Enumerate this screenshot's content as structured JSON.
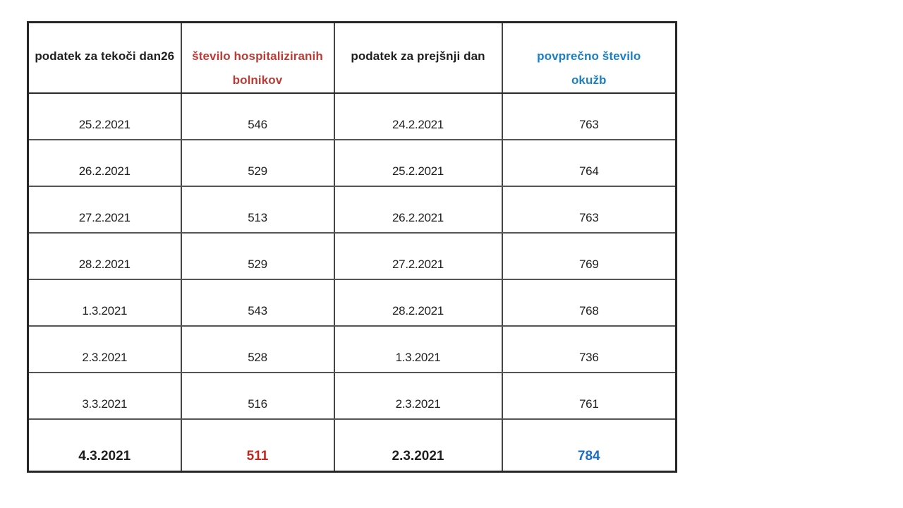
{
  "colors": {
    "header_red": "#be3a34",
    "header_blue": "#1b7fc4",
    "data_red": "#c04038",
    "data_blue": "#2e75b6",
    "data_black": "#1f1f1f",
    "border_outer": "#262626",
    "border_inner": "#555555",
    "background": "#ffffff"
  },
  "chart_data": {
    "type": "table",
    "columns": [
      {
        "id": "current_date",
        "label": "podatek za tekoči dan26",
        "label_lines": [
          "podatek za tekoči dan26"
        ],
        "color": "#1f1f1f"
      },
      {
        "id": "hospitalized",
        "label": "število hospitaliziranih bolnikov",
        "label_lines": [
          "število hospitaliziranih",
          "bolnikov"
        ],
        "color": "#be3a34"
      },
      {
        "id": "previous_date",
        "label": "podatek za prejšnji dan",
        "label_lines": [
          "podatek za prejšnji dan"
        ],
        "color": "#1f1f1f"
      },
      {
        "id": "avg_infections",
        "label": "povprečno število okužb",
        "label_lines": [
          "povprečno število",
          "okužb"
        ],
        "color": "#1b7fc4"
      }
    ],
    "rows": [
      {
        "current_date": "25.2.2021",
        "hospitalized": 546,
        "previous_date": "24.2.2021",
        "avg_infections": 763,
        "emphasis": false
      },
      {
        "current_date": "26.2.2021",
        "hospitalized": 529,
        "previous_date": "25.2.2021",
        "avg_infections": 764,
        "emphasis": false
      },
      {
        "current_date": "27.2.2021",
        "hospitalized": 513,
        "previous_date": "26.2.2021",
        "avg_infections": 763,
        "emphasis": false
      },
      {
        "current_date": "28.2.2021",
        "hospitalized": 529,
        "previous_date": "27.2.2021",
        "avg_infections": 769,
        "emphasis": false
      },
      {
        "current_date": "1.3.2021",
        "hospitalized": 543,
        "previous_date": "28.2.2021",
        "avg_infections": 768,
        "emphasis": false
      },
      {
        "current_date": "2.3.2021",
        "hospitalized": 528,
        "previous_date": "1.3.2021",
        "avg_infections": 736,
        "emphasis": false
      },
      {
        "current_date": "3.3.2021",
        "hospitalized": 516,
        "previous_date": "2.3.2021",
        "avg_infections": 761,
        "emphasis": false
      },
      {
        "current_date": "4.3.2021",
        "hospitalized": 511,
        "previous_date": "2.3.2021",
        "avg_infections": 784,
        "emphasis": true
      }
    ]
  }
}
